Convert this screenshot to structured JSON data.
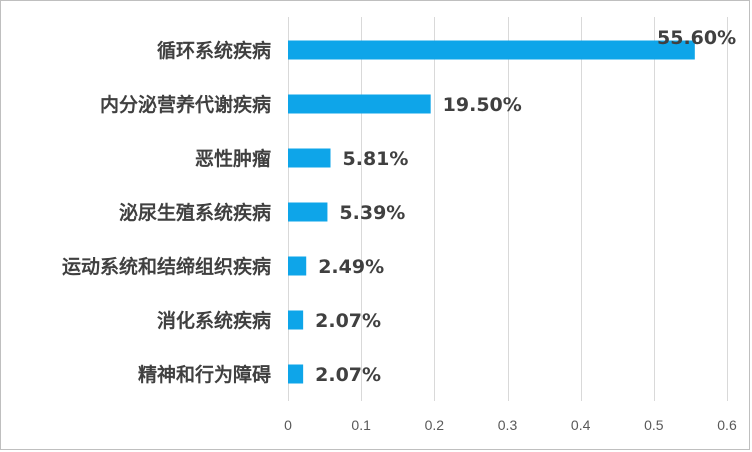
{
  "colors": {
    "bar": "#0ea5e9",
    "grid": "#d9d9d9",
    "text": "#404040"
  },
  "chart_data": {
    "type": "bar",
    "orientation": "horizontal",
    "categories": [
      "循环系统疾病",
      "内分泌营养代谢疾病",
      "恶性肿瘤",
      "泌尿生殖系统疾病",
      "运动系统和结缔组织疾病",
      "消化系统疾病",
      "精神和行为障碍"
    ],
    "values": [
      0.556,
      0.195,
      0.0581,
      0.0539,
      0.0249,
      0.0207,
      0.0207
    ],
    "data_labels": [
      "55.60%",
      "19.50%",
      "5.81%",
      "5.39%",
      "2.49%",
      "2.07%",
      "2.07%"
    ],
    "x_ticks": [
      "0",
      "0.1",
      "0.2",
      "0.3",
      "0.4",
      "0.5",
      "0.6"
    ],
    "xlim": [
      0,
      0.6
    ],
    "grid": "vertical",
    "legend": "none",
    "title": "",
    "xlabel": "",
    "ylabel": ""
  }
}
